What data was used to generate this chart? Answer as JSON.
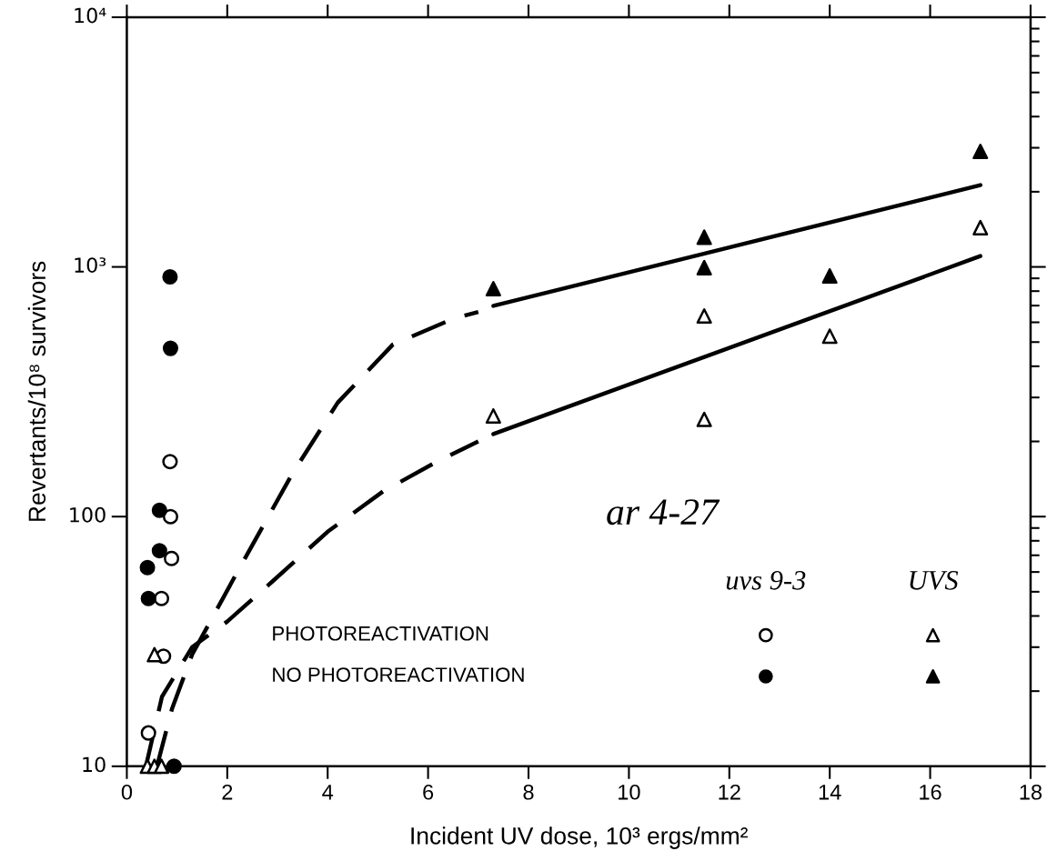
{
  "chart_data": {
    "type": "scatter",
    "xlabel": "Incident UV dose, 10³ ergs/mm²",
    "ylabel": "Revertants/10⁸ survivors",
    "log": "y",
    "xlim": [
      0,
      18
    ],
    "xticks": [
      0,
      2,
      4,
      6,
      8,
      10,
      12,
      14,
      16,
      18
    ],
    "ylim": [
      10,
      10000
    ],
    "yticks": [
      {
        "value": 10,
        "label": "10"
      },
      {
        "value": 100,
        "label": "100"
      },
      {
        "value": 1000,
        "label": "10³"
      },
      {
        "value": 10000,
        "label": "10⁴"
      }
    ],
    "series": [
      {
        "marker": "circle",
        "color": "#ffffff",
        "x": [
          0.86,
          0.87,
          0.89,
          0.69,
          0.73,
          0.43
        ],
        "values": [
          166,
          100,
          68,
          47,
          27.6,
          13.6
        ]
      },
      {
        "marker": "circle",
        "color": "#000000",
        "x": [
          0.86,
          0.87,
          0.65,
          0.65,
          0.41,
          0.43,
          0.94
        ],
        "values": [
          912,
          472,
          106,
          73,
          62.5,
          47,
          10
        ]
      },
      {
        "marker": "triangle",
        "color": "#ffffff",
        "x": [
          0.55,
          0.41,
          0.55,
          0.69,
          7.3,
          11.5,
          11.5,
          14.0,
          17.0
        ],
        "values": [
          28,
          10,
          10,
          10,
          253,
          245,
          636,
          528,
          1436
        ]
      },
      {
        "marker": "triangle",
        "color": "#000000",
        "x": [
          7.3,
          11.5,
          11.5,
          14.0,
          17.0
        ],
        "values": [
          818,
          993,
          1315,
          920,
          2900
        ]
      },
      {
        "type": "line",
        "color": "#000000",
        "line_style": "solid",
        "marker": "none",
        "x": [
          7.3,
          17.0
        ],
        "values": [
          698,
          2126
        ]
      },
      {
        "type": "line",
        "color": "#000000",
        "line_style": "solid",
        "marker": "none",
        "x": [
          7.3,
          17.0
        ],
        "values": [
          214,
          1105
        ]
      },
      {
        "type": "line",
        "color": "#000000",
        "line_style": "dashed",
        "marker": "none",
        "x": [
          0.6,
          0.9,
          1.3,
          2.2,
          3.3,
          4.2,
          5.3,
          6.5,
          7.0
        ],
        "values": [
          10,
          17,
          28,
          60,
          149,
          286,
          489,
          620,
          660
        ]
      },
      {
        "type": "line",
        "color": "#000000",
        "line_style": "dashed",
        "marker": "none",
        "x": [
          0.38,
          0.7,
          1.3,
          2.0,
          2.9,
          4.0,
          5.1,
          6.2,
          7.0
        ],
        "values": [
          10,
          19,
          30,
          38,
          55,
          87,
          126,
          167,
          200
        ]
      }
    ],
    "annotations": [
      "ar 4-27",
      "uvs 9-3",
      "UVS",
      "PHOTOREACTIVATION",
      "NO PHOTOREACTIVATION"
    ]
  }
}
